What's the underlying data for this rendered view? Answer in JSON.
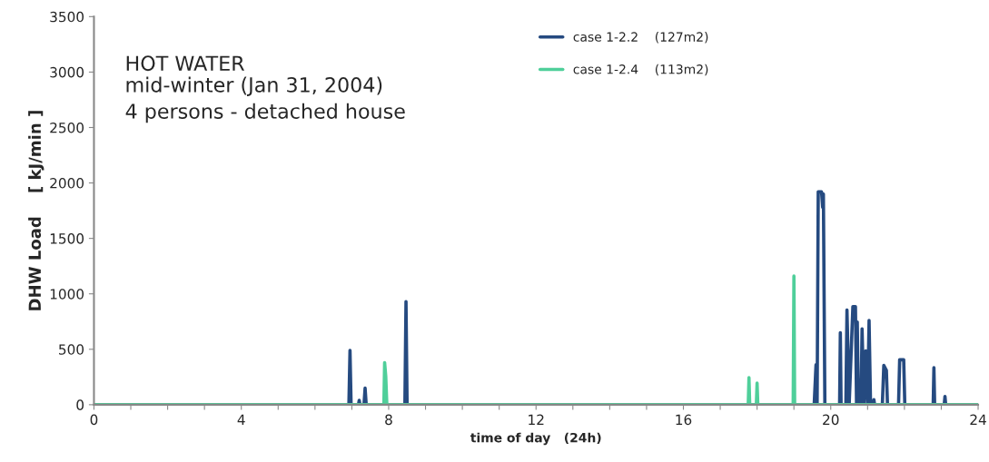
{
  "chart_data": {
    "type": "line",
    "title": "HOT WATER",
    "subtitle": "mid-winter (Jan 31, 2004)\n4 persons - detached house",
    "xlabel": "time of day   (24h)",
    "ylabel": "DHW Load    [ kJ/min ]",
    "series": [
      {
        "name": "case 1-2.2    (127m2)",
        "color": "#254a80",
        "x": [
          0,
          6.92,
          6.95,
          6.98,
          7.18,
          7.2,
          7.22,
          7.33,
          7.36,
          7.39,
          8.44,
          8.47,
          8.5,
          19.55,
          19.6,
          19.63,
          19.66,
          19.75,
          19.78,
          19.8,
          19.84,
          20.24,
          20.26,
          20.28,
          20.41,
          20.44,
          20.5,
          20.6,
          20.67,
          20.7,
          20.72,
          20.75,
          20.82,
          20.85,
          20.9,
          20.95,
          21.0,
          21.04,
          21.08,
          21.15,
          21.17,
          21.19,
          21.4,
          21.44,
          21.51,
          21.54,
          21.84,
          21.87,
          21.98,
          22.01,
          22.78,
          22.8,
          22.82,
          23.08,
          23.1,
          23.12,
          24
        ],
        "values": [
          0,
          0,
          490,
          0,
          0,
          40,
          0,
          0,
          150,
          0,
          0,
          930,
          0,
          0,
          360,
          0,
          1920,
          1920,
          1780,
          1900,
          0,
          0,
          650,
          0,
          0,
          855,
          0,
          885,
          885,
          0,
          745,
          0,
          0,
          685,
          0,
          485,
          0,
          760,
          0,
          0,
          45,
          0,
          0,
          355,
          310,
          0,
          0,
          405,
          405,
          0,
          0,
          335,
          0,
          0,
          75,
          0,
          0
        ]
      },
      {
        "name": "case 1-2.4    (113m2)",
        "color": "#4fcf9a",
        "x": [
          0,
          7.87,
          7.89,
          7.92,
          7.95,
          17.76,
          17.78,
          17.8,
          17.98,
          18.0,
          18.02,
          18.98,
          19.0,
          19.02,
          24
        ],
        "values": [
          0,
          0,
          380,
          260,
          0,
          0,
          245,
          0,
          0,
          195,
          0,
          0,
          1160,
          0,
          0
        ]
      }
    ],
    "xlim": [
      0,
      24
    ],
    "xticks": [
      0,
      {
        "value": 1,
        "label": null
      },
      {
        "value": 2,
        "label": null
      },
      {
        "value": 3,
        "label": null
      },
      4,
      {
        "value": 5,
        "label": null
      },
      {
        "value": 6,
        "label": null
      },
      {
        "value": 7,
        "label": null
      },
      8,
      {
        "value": 9,
        "label": null
      },
      {
        "value": 10,
        "label": null
      },
      {
        "value": 11,
        "label": null
      },
      12,
      {
        "value": 13,
        "label": null
      },
      {
        "value": 14,
        "label": null
      },
      {
        "value": 15,
        "label": null
      },
      16,
      {
        "value": 17,
        "label": null
      },
      {
        "value": 18,
        "label": null
      },
      {
        "value": 19,
        "label": null
      },
      20,
      {
        "value": 21,
        "label": null
      },
      {
        "value": 22,
        "label": null
      },
      {
        "value": 23,
        "label": null
      },
      24
    ],
    "ylim": [
      0,
      3500
    ],
    "yticks": [
      0,
      500,
      1000,
      1500,
      2000,
      2500,
      3000,
      3500
    ],
    "grid": false,
    "legend": "top",
    "marker": "none",
    "line_style": "solid"
  }
}
